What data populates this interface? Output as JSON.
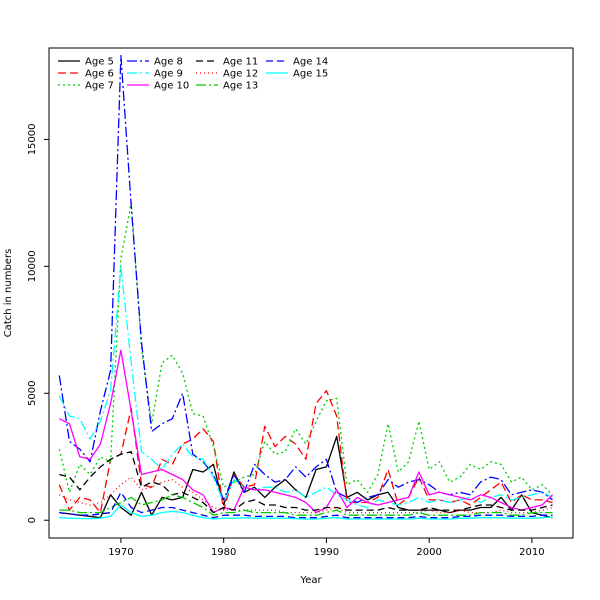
{
  "chart_data": {
    "type": "line",
    "title": "",
    "xlabel": "Year",
    "ylabel": "Catch in numbers",
    "xlim": [
      1963,
      2014
    ],
    "ylim": [
      -700,
      18600
    ],
    "x_ticks": [
      1970,
      1980,
      1990,
      2000,
      2010
    ],
    "y_ticks": [
      0,
      5000,
      10000,
      15000
    ],
    "grid": false,
    "legend_position": "top-left",
    "x": [
      1964,
      1965,
      1966,
      1967,
      1968,
      1969,
      1970,
      1971,
      1972,
      1973,
      1974,
      1975,
      1976,
      1977,
      1978,
      1979,
      1980,
      1981,
      1982,
      1983,
      1984,
      1985,
      1986,
      1987,
      1988,
      1989,
      1990,
      1991,
      1992,
      1993,
      1994,
      1995,
      1996,
      1997,
      1998,
      1999,
      2000,
      2001,
      2002,
      2003,
      2004,
      2005,
      2006,
      2007,
      2008,
      2009,
      2010,
      2011,
      2012
    ],
    "series": [
      {
        "name": "Age 5",
        "color": "#000000",
        "dash": "solid",
        "values": [
          300,
          250,
          200,
          150,
          100,
          1000,
          500,
          200,
          1100,
          200,
          900,
          800,
          900,
          2000,
          1900,
          2200,
          600,
          1900,
          1100,
          1300,
          900,
          1300,
          1600,
          1200,
          900,
          2000,
          2100,
          3300,
          900,
          1100,
          800,
          1000,
          1100,
          500,
          400,
          400,
          400,
          400,
          300,
          400,
          400,
          500,
          500,
          900,
          400,
          1000,
          300,
          200,
          100
        ]
      },
      {
        "name": "Age 6",
        "color": "#ff0000",
        "dash": "8,4",
        "values": [
          1400,
          400,
          900,
          800,
          300,
          2400,
          2600,
          4400,
          1400,
          1300,
          2400,
          2200,
          3000,
          3200,
          3600,
          3100,
          400,
          1800,
          1300,
          1400,
          3700,
          2900,
          3300,
          3000,
          2400,
          4600,
          5100,
          4100,
          700,
          700,
          700,
          900,
          2000,
          600,
          900,
          1700,
          800,
          800,
          700,
          800,
          600,
          900,
          1200,
          1500,
          700,
          1000,
          800,
          800,
          700
        ]
      },
      {
        "name": "Age 7",
        "color": "#00cc00",
        "dash": "2,3",
        "values": [
          2800,
          1100,
          2200,
          1800,
          2500,
          2300,
          10300,
          12500,
          6800,
          3800,
          6200,
          6500,
          5800,
          4200,
          4100,
          2900,
          1300,
          1500,
          1700,
          1800,
          3100,
          2600,
          2700,
          3600,
          3000,
          3900,
          4700,
          4800,
          1400,
          1600,
          1100,
          1800,
          3800,
          1900,
          2300,
          3900,
          2000,
          2300,
          1500,
          1700,
          2200,
          2000,
          2300,
          2200,
          1500,
          1700,
          1200,
          1400,
          1000
        ]
      },
      {
        "name": "Age 8",
        "color": "#0000ff",
        "dash": "10,3,2,3",
        "values": [
          5700,
          3100,
          2800,
          2300,
          4300,
          5900,
          18300,
          12400,
          7000,
          3500,
          3800,
          4000,
          5000,
          2600,
          2300,
          1800,
          800,
          1800,
          1100,
          2200,
          1800,
          1500,
          1600,
          2100,
          1700,
          2100,
          2400,
          1100,
          900,
          700,
          900,
          1000,
          1600,
          1300,
          1500,
          1600,
          1400,
          1100,
          1000,
          1100,
          1000,
          1500,
          1700,
          1600,
          1000,
          1100,
          1200,
          1100,
          800
        ]
      },
      {
        "name": "Age 9",
        "color": "#00ffff",
        "dash": "10,3,2,3",
        "values": [
          4900,
          4100,
          4000,
          3200,
          3900,
          5100,
          10000,
          6200,
          2700,
          2400,
          2000,
          2600,
          3000,
          2500,
          2400,
          1700,
          700,
          1600,
          1300,
          1200,
          1300,
          1300,
          1100,
          1200,
          900,
          1100,
          1300,
          1000,
          800,
          600,
          500,
          800,
          700,
          600,
          700,
          900,
          700,
          800,
          700,
          800,
          900,
          700,
          900,
          1000,
          800,
          900,
          1000,
          1100,
          900
        ]
      },
      {
        "name": "Age 10",
        "color": "#ff00ff",
        "dash": "solid",
        "values": [
          4000,
          3800,
          2500,
          2400,
          3000,
          4600,
          6700,
          4300,
          1800,
          1900,
          2000,
          1800,
          1600,
          1200,
          1000,
          300,
          500,
          400,
          1300,
          1200,
          1200,
          1100,
          1000,
          900,
          700,
          300,
          500,
          1200,
          500,
          900,
          700,
          600,
          700,
          800,
          900,
          1900,
          1000,
          1100,
          1000,
          900,
          800,
          1000,
          900,
          700,
          500,
          400,
          500,
          600,
          1000
        ]
      },
      {
        "name": "Age 11",
        "color": "#000000",
        "dash": "7,4",
        "values": [
          1800,
          1700,
          1200,
          1700,
          2100,
          2400,
          2600,
          2700,
          1300,
          1500,
          1400,
          1000,
          1100,
          900,
          700,
          300,
          500,
          400,
          700,
          800,
          600,
          600,
          500,
          500,
          400,
          400,
          500,
          500,
          400,
          400,
          400,
          400,
          500,
          400,
          400,
          400,
          500,
          400,
          400,
          400,
          500,
          600,
          600,
          500,
          400,
          400,
          400,
          500,
          600
        ]
      },
      {
        "name": "Age 12",
        "color": "#ff0000",
        "dash": "1,3",
        "values": [
          1000,
          800,
          700,
          600,
          700,
          1000,
          1400,
          1700,
          1200,
          1300,
          1500,
          1600,
          1300,
          1100,
          800,
          500,
          400,
          400,
          400,
          400,
          400,
          400,
          300,
          300,
          300,
          300,
          400,
          500,
          300,
          300,
          300,
          300,
          300,
          300,
          300,
          300,
          400,
          300,
          300,
          400,
          300,
          300,
          300,
          400,
          300,
          300,
          300,
          400,
          500
        ]
      },
      {
        "name": "Age 13",
        "color": "#00cc00",
        "dash": "10,3,2,3",
        "values": [
          400,
          400,
          300,
          300,
          300,
          500,
          700,
          900,
          600,
          700,
          800,
          1000,
          900,
          700,
          500,
          200,
          300,
          300,
          400,
          300,
          300,
          300,
          300,
          200,
          200,
          200,
          300,
          400,
          200,
          200,
          200,
          200,
          200,
          200,
          200,
          300,
          200,
          200,
          200,
          200,
          200,
          300,
          300,
          300,
          200,
          200,
          300,
          300,
          300
        ]
      },
      {
        "name": "Age 14",
        "color": "#0000ff",
        "dash": "7,4",
        "values": [
          300,
          250,
          200,
          200,
          250,
          300,
          1100,
          500,
          300,
          400,
          500,
          500,
          400,
          300,
          200,
          100,
          200,
          200,
          200,
          150,
          150,
          150,
          150,
          100,
          100,
          100,
          150,
          200,
          100,
          100,
          100,
          100,
          100,
          100,
          100,
          150,
          100,
          100,
          100,
          150,
          150,
          200,
          200,
          200,
          150,
          150,
          150,
          200,
          200
        ]
      },
      {
        "name": "Age 15",
        "color": "#00ffff",
        "dash": "solid",
        "values": [
          100,
          80,
          70,
          60,
          80,
          150,
          600,
          300,
          150,
          200,
          300,
          350,
          300,
          200,
          100,
          50,
          80,
          80,
          100,
          80,
          80,
          80,
          80,
          60,
          50,
          50,
          80,
          100,
          50,
          50,
          50,
          50,
          50,
          50,
          50,
          80,
          50,
          50,
          50,
          80,
          80,
          100,
          100,
          100,
          80,
          80,
          80,
          100,
          120
        ]
      }
    ]
  }
}
